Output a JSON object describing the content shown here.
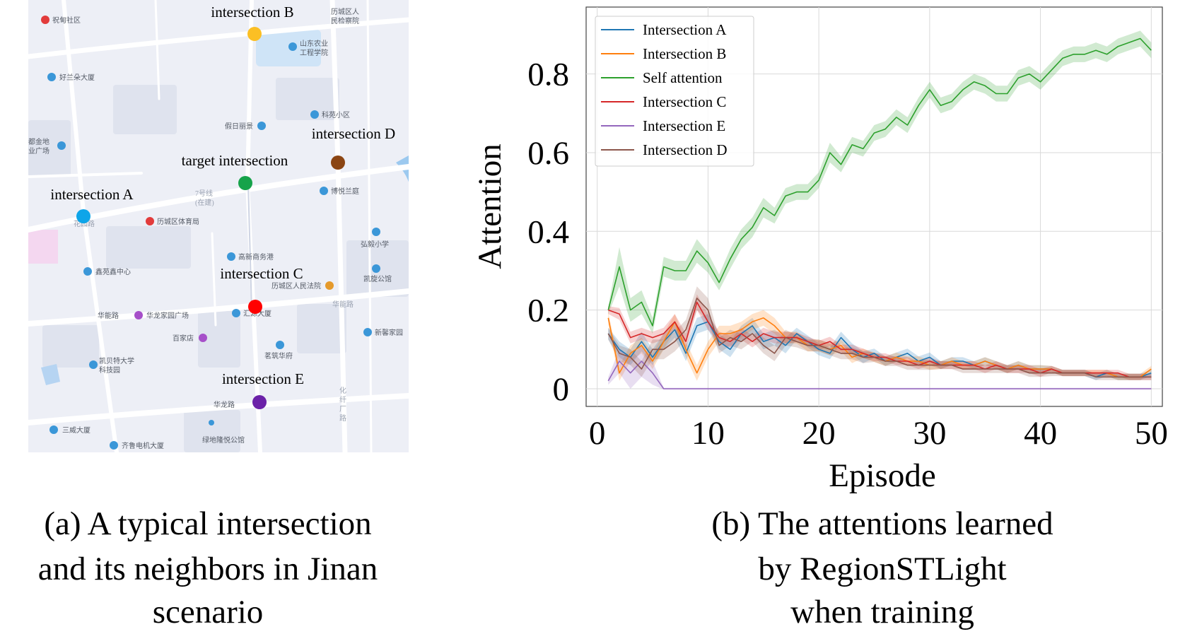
{
  "left_panel": {
    "caption_lines": [
      "(a) A typical intersection",
      "and its neighbors in Jinan",
      "scenario"
    ],
    "map": {
      "intersections": [
        {
          "id": "B",
          "label": "intersection B",
          "color": "#fbbf24"
        },
        {
          "id": "D",
          "label": "intersection D",
          "color": "#8b4513"
        },
        {
          "id": "T",
          "label": "target intersection",
          "color": "#16a34a"
        },
        {
          "id": "A",
          "label": "intersection A",
          "color": "#0ea5e9"
        },
        {
          "id": "C",
          "label": "intersection C",
          "color": "#ff0000"
        },
        {
          "id": "E",
          "label": "intersection E",
          "color": "#6b21a8"
        }
      ],
      "pois": [
        {
          "id": "p1",
          "text": "祝甸社区",
          "icon": "poi-red"
        },
        {
          "id": "p2",
          "text": "历城区人",
          "icon": "none"
        },
        {
          "id": "p3",
          "text": "民检察院",
          "icon": "none"
        },
        {
          "id": "p4",
          "text": "山东农业",
          "icon": "poi-blue"
        },
        {
          "id": "p5",
          "text": "工程学院",
          "icon": "none"
        },
        {
          "id": "p6",
          "text": "好兰朵大厦",
          "icon": "poi-blue"
        },
        {
          "id": "p7",
          "text": "科苑小区",
          "icon": "poi-blue"
        },
        {
          "id": "p8",
          "text": "假日丽景",
          "icon": "poi-blue"
        },
        {
          "id": "p9",
          "text": "都金地",
          "icon": "none"
        },
        {
          "id": "p10",
          "text": "业广场",
          "icon": "poi-blue"
        },
        {
          "id": "p11",
          "text": "博悦兰庭",
          "icon": "poi-blue"
        },
        {
          "id": "p12",
          "text": "7号线",
          "icon": "none"
        },
        {
          "id": "p13",
          "text": "(在建)",
          "icon": "none"
        },
        {
          "id": "p14",
          "text": "花园路",
          "icon": "none"
        },
        {
          "id": "p15",
          "text": "历城区体育局",
          "icon": "poi-red"
        },
        {
          "id": "p16",
          "text": "弘毅小学",
          "icon": "poi-blue"
        },
        {
          "id": "p17",
          "text": "高新商务港",
          "icon": "poi-blue"
        },
        {
          "id": "p18",
          "text": "鑫苑鑫中心",
          "icon": "poi-blue"
        },
        {
          "id": "p19",
          "text": "凯旋公馆",
          "icon": "poi-blue"
        },
        {
          "id": "p20",
          "text": "历城区人民法院",
          "icon": "poi-orange"
        },
        {
          "id": "p21",
          "text": "华能路",
          "icon": "none"
        },
        {
          "id": "p22",
          "text": "华能路",
          "icon": "none"
        },
        {
          "id": "p23",
          "text": "华龙家园广场",
          "icon": "poi-purple"
        },
        {
          "id": "p24",
          "text": "汇源大厦",
          "icon": "poi-blue"
        },
        {
          "id": "p25",
          "text": "新馨家园",
          "icon": "poi-blue"
        },
        {
          "id": "p26",
          "text": "百家店",
          "icon": "poi-purple"
        },
        {
          "id": "p27",
          "text": "茗筑华府",
          "icon": "poi-blue"
        },
        {
          "id": "p28",
          "text": "凯贝特大学",
          "icon": "poi-blue"
        },
        {
          "id": "p29",
          "text": "科技园",
          "icon": "none"
        },
        {
          "id": "p30",
          "text": "华龙路",
          "icon": "none"
        },
        {
          "id": "p31",
          "text": "绿地隆悦公馆",
          "icon": "poi-blue"
        },
        {
          "id": "p32",
          "text": "三威大厦",
          "icon": "poi-blue"
        },
        {
          "id": "p33",
          "text": "齐鲁电机大厦",
          "icon": "poi-blue"
        },
        {
          "id": "p34",
          "text": "化",
          "icon": "none"
        },
        {
          "id": "p35",
          "text": "纤",
          "icon": "none"
        },
        {
          "id": "p36",
          "text": "厂",
          "icon": "none"
        },
        {
          "id": "p37",
          "text": "路",
          "icon": "none"
        }
      ]
    }
  },
  "right_panel": {
    "caption_lines": [
      "(b) The attentions learned",
      "by RegionSTLight",
      "when training"
    ]
  },
  "chart_data": {
    "type": "line",
    "title": "",
    "xlabel": "Episode",
    "ylabel": "Attention",
    "xlim": [
      -1,
      51
    ],
    "ylim": [
      -0.045,
      0.97
    ],
    "xticks": [
      0,
      10,
      20,
      30,
      40,
      50
    ],
    "yticks": [
      0,
      0.2,
      0.4,
      0.6,
      0.8
    ],
    "xtick_labels": [
      "0",
      "10",
      "20",
      "30",
      "40",
      "50"
    ],
    "ytick_labels": [
      "0",
      "0.2",
      "0.4",
      "0.6",
      "0.8"
    ],
    "grid": true,
    "legend_position": "top-left",
    "x": [
      1,
      2,
      3,
      4,
      5,
      6,
      7,
      8,
      9,
      10,
      11,
      12,
      13,
      14,
      15,
      16,
      17,
      18,
      19,
      20,
      21,
      22,
      23,
      24,
      25,
      26,
      27,
      28,
      29,
      30,
      31,
      32,
      33,
      34,
      35,
      36,
      37,
      38,
      39,
      40,
      41,
      42,
      43,
      44,
      45,
      46,
      47,
      48,
      49,
      50
    ],
    "series": [
      {
        "name": "Intersection A",
        "color": "#1f77b4",
        "values": [
          0.14,
          0.1,
          0.08,
          0.12,
          0.08,
          0.12,
          0.15,
          0.09,
          0.16,
          0.17,
          0.12,
          0.1,
          0.14,
          0.16,
          0.12,
          0.13,
          0.11,
          0.14,
          0.12,
          0.1,
          0.09,
          0.13,
          0.1,
          0.08,
          0.09,
          0.07,
          0.08,
          0.09,
          0.07,
          0.08,
          0.06,
          0.07,
          0.07,
          0.06,
          0.07,
          0.06,
          0.05,
          0.06,
          0.05,
          0.05,
          0.05,
          0.04,
          0.04,
          0.04,
          0.03,
          0.04,
          0.03,
          0.03,
          0.03,
          0.04
        ],
        "band": [
          0.015,
          0.02,
          0.02,
          0.025,
          0.02,
          0.02,
          0.02,
          0.02,
          0.02,
          0.02,
          0.02,
          0.02,
          0.02,
          0.02,
          0.02,
          0.02,
          0.02,
          0.015,
          0.015,
          0.015,
          0.015,
          0.015,
          0.015,
          0.015,
          0.012,
          0.012,
          0.012,
          0.012,
          0.012,
          0.012,
          0.01,
          0.01,
          0.01,
          0.01,
          0.01,
          0.01,
          0.01,
          0.01,
          0.01,
          0.01,
          0.008,
          0.008,
          0.008,
          0.008,
          0.008,
          0.008,
          0.008,
          0.008,
          0.008,
          0.008
        ]
      },
      {
        "name": "Intersection B",
        "color": "#ff7f0e",
        "values": [
          0.18,
          0.04,
          0.09,
          0.11,
          0.07,
          0.12,
          0.17,
          0.1,
          0.04,
          0.1,
          0.14,
          0.14,
          0.15,
          0.17,
          0.18,
          0.16,
          0.13,
          0.13,
          0.11,
          0.11,
          0.1,
          0.11,
          0.08,
          0.09,
          0.08,
          0.07,
          0.08,
          0.07,
          0.07,
          0.06,
          0.06,
          0.07,
          0.06,
          0.06,
          0.07,
          0.06,
          0.05,
          0.06,
          0.05,
          0.05,
          0.05,
          0.04,
          0.04,
          0.04,
          0.04,
          0.04,
          0.03,
          0.03,
          0.03,
          0.05
        ],
        "band": [
          0.015,
          0.02,
          0.02,
          0.02,
          0.02,
          0.02,
          0.02,
          0.02,
          0.02,
          0.02,
          0.02,
          0.02,
          0.02,
          0.02,
          0.02,
          0.02,
          0.015,
          0.015,
          0.015,
          0.015,
          0.015,
          0.015,
          0.015,
          0.012,
          0.012,
          0.012,
          0.012,
          0.012,
          0.012,
          0.012,
          0.01,
          0.01,
          0.01,
          0.01,
          0.01,
          0.01,
          0.01,
          0.01,
          0.01,
          0.01,
          0.008,
          0.008,
          0.008,
          0.008,
          0.008,
          0.008,
          0.008,
          0.008,
          0.008,
          0.008
        ]
      },
      {
        "name": "Self attention",
        "color": "#2ca02c",
        "values": [
          0.2,
          0.31,
          0.2,
          0.22,
          0.16,
          0.31,
          0.3,
          0.3,
          0.35,
          0.32,
          0.27,
          0.33,
          0.38,
          0.41,
          0.46,
          0.44,
          0.49,
          0.5,
          0.5,
          0.53,
          0.6,
          0.57,
          0.62,
          0.61,
          0.65,
          0.66,
          0.69,
          0.67,
          0.72,
          0.76,
          0.72,
          0.73,
          0.76,
          0.78,
          0.77,
          0.75,
          0.75,
          0.79,
          0.8,
          0.78,
          0.81,
          0.84,
          0.85,
          0.85,
          0.86,
          0.85,
          0.87,
          0.88,
          0.89,
          0.86
        ],
        "band": [
          0.01,
          0.05,
          0.03,
          0.03,
          0.02,
          0.025,
          0.025,
          0.025,
          0.03,
          0.025,
          0.02,
          0.025,
          0.025,
          0.025,
          0.025,
          0.02,
          0.02,
          0.02,
          0.02,
          0.02,
          0.025,
          0.02,
          0.02,
          0.02,
          0.02,
          0.02,
          0.02,
          0.02,
          0.02,
          0.02,
          0.02,
          0.02,
          0.02,
          0.02,
          0.02,
          0.02,
          0.02,
          0.02,
          0.02,
          0.02,
          0.02,
          0.02,
          0.02,
          0.02,
          0.02,
          0.02,
          0.02,
          0.02,
          0.02,
          0.02
        ]
      },
      {
        "name": "Intersection C",
        "color": "#d62728",
        "values": [
          0.2,
          0.19,
          0.13,
          0.14,
          0.13,
          0.14,
          0.17,
          0.12,
          0.22,
          0.17,
          0.13,
          0.12,
          0.14,
          0.12,
          0.14,
          0.13,
          0.13,
          0.13,
          0.12,
          0.11,
          0.12,
          0.1,
          0.1,
          0.09,
          0.08,
          0.08,
          0.07,
          0.07,
          0.06,
          0.07,
          0.06,
          0.06,
          0.06,
          0.06,
          0.05,
          0.06,
          0.05,
          0.05,
          0.05,
          0.04,
          0.05,
          0.04,
          0.04,
          0.04,
          0.04,
          0.04,
          0.04,
          0.03,
          0.03,
          0.03
        ],
        "band": [
          0.01,
          0.015,
          0.015,
          0.015,
          0.015,
          0.015,
          0.02,
          0.02,
          0.02,
          0.02,
          0.015,
          0.015,
          0.015,
          0.015,
          0.015,
          0.015,
          0.015,
          0.012,
          0.012,
          0.012,
          0.012,
          0.012,
          0.012,
          0.012,
          0.01,
          0.01,
          0.01,
          0.01,
          0.01,
          0.01,
          0.01,
          0.01,
          0.01,
          0.01,
          0.01,
          0.01,
          0.01,
          0.01,
          0.01,
          0.01,
          0.008,
          0.008,
          0.008,
          0.008,
          0.008,
          0.008,
          0.008,
          0.008,
          0.008,
          0.008
        ]
      },
      {
        "name": "Intersection E",
        "color": "#9467bd",
        "values": [
          0.02,
          0.07,
          0.04,
          0.07,
          0.04,
          0.0,
          0.0,
          0.0,
          0.0,
          0.0,
          0.0,
          0.0,
          0.0,
          0.0,
          0.0,
          0.0,
          0.0,
          0.0,
          0.0,
          0.0,
          0.0,
          0.0,
          0.0,
          0.0,
          0.0,
          0.0,
          0.0,
          0.0,
          0.0,
          0.0,
          0.0,
          0.0,
          0.0,
          0.0,
          0.0,
          0.0,
          0.0,
          0.0,
          0.0,
          0.0,
          0.0,
          0.0,
          0.0,
          0.0,
          0.0,
          0.0,
          0.0,
          0.0,
          0.0,
          0.0
        ],
        "band": [
          0.01,
          0.03,
          0.04,
          0.04,
          0.03,
          0.002,
          0.002,
          0.002,
          0.002,
          0.002,
          0.002,
          0.002,
          0.002,
          0.002,
          0.002,
          0.002,
          0.002,
          0.002,
          0.002,
          0.002,
          0.002,
          0.002,
          0.002,
          0.002,
          0.002,
          0.002,
          0.002,
          0.002,
          0.002,
          0.002,
          0.002,
          0.002,
          0.002,
          0.002,
          0.002,
          0.002,
          0.002,
          0.002,
          0.002,
          0.002,
          0.002,
          0.002,
          0.002,
          0.002,
          0.002,
          0.002,
          0.002,
          0.002,
          0.002,
          0.002
        ]
      },
      {
        "name": "Intersection D",
        "color": "#8c564b",
        "values": [
          0.14,
          0.09,
          0.08,
          0.05,
          0.1,
          0.1,
          0.12,
          0.15,
          0.23,
          0.2,
          0.11,
          0.13,
          0.12,
          0.14,
          0.11,
          0.09,
          0.13,
          0.12,
          0.11,
          0.11,
          0.1,
          0.09,
          0.09,
          0.08,
          0.08,
          0.07,
          0.07,
          0.06,
          0.06,
          0.06,
          0.06,
          0.06,
          0.05,
          0.05,
          0.05,
          0.05,
          0.05,
          0.05,
          0.04,
          0.04,
          0.04,
          0.04,
          0.04,
          0.04,
          0.03,
          0.03,
          0.03,
          0.03,
          0.03,
          0.03
        ],
        "band": [
          0.015,
          0.02,
          0.02,
          0.02,
          0.025,
          0.025,
          0.025,
          0.025,
          0.03,
          0.03,
          0.02,
          0.02,
          0.02,
          0.02,
          0.02,
          0.02,
          0.02,
          0.015,
          0.015,
          0.015,
          0.015,
          0.015,
          0.015,
          0.015,
          0.012,
          0.012,
          0.012,
          0.012,
          0.012,
          0.012,
          0.01,
          0.01,
          0.01,
          0.01,
          0.01,
          0.01,
          0.01,
          0.01,
          0.01,
          0.01,
          0.008,
          0.008,
          0.008,
          0.008,
          0.008,
          0.008,
          0.008,
          0.008,
          0.008,
          0.008
        ]
      }
    ]
  }
}
